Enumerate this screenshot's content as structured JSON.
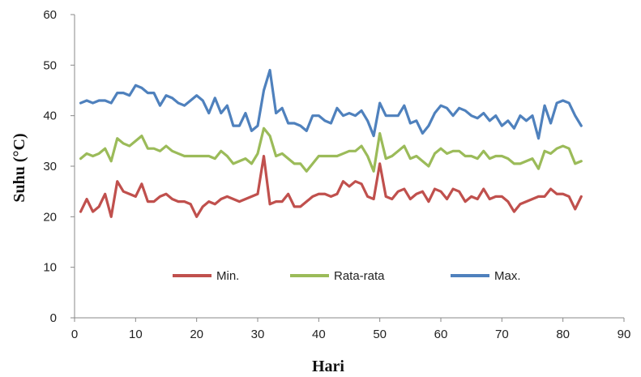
{
  "chart_data": {
    "type": "line",
    "xlabel": "Hari",
    "ylabel": "Suhu (°C)",
    "xlim": [
      0,
      90
    ],
    "ylim": [
      0,
      60
    ],
    "xticks": [
      0,
      10,
      20,
      30,
      40,
      50,
      60,
      70,
      80,
      90
    ],
    "yticks": [
      0,
      10,
      20,
      30,
      40,
      50,
      60
    ],
    "grid": false,
    "legend": "bottom-center",
    "x": [
      1,
      2,
      3,
      4,
      5,
      6,
      7,
      8,
      9,
      10,
      11,
      12,
      13,
      14,
      15,
      16,
      17,
      18,
      19,
      20,
      21,
      22,
      23,
      24,
      25,
      26,
      27,
      28,
      29,
      30,
      31,
      32,
      33,
      34,
      35,
      36,
      37,
      38,
      39,
      40,
      41,
      42,
      43,
      44,
      45,
      46,
      47,
      48,
      49,
      50,
      51,
      52,
      53,
      54,
      55,
      56,
      57,
      58,
      59,
      60,
      61,
      62,
      63,
      64,
      65,
      66,
      67,
      68,
      69,
      70,
      71,
      72,
      73,
      74,
      75,
      76,
      77,
      78,
      79,
      80,
      81,
      82,
      83
    ],
    "series": [
      {
        "name": "Min.",
        "color": "#c0504d",
        "values": [
          21,
          23.5,
          21,
          22,
          24.5,
          20,
          27,
          25,
          24.5,
          24,
          26.5,
          23,
          23,
          24,
          24.5,
          23.5,
          23,
          23,
          22.5,
          20,
          22,
          23,
          22.5,
          23.5,
          24,
          23.5,
          23,
          23.5,
          24,
          24.5,
          32,
          22.5,
          23,
          23,
          24.5,
          22,
          22,
          23,
          24,
          24.5,
          24.5,
          24,
          24.5,
          27,
          26,
          27,
          26.5,
          24,
          23.5,
          30.5,
          24,
          23.5,
          25,
          25.5,
          23.5,
          24.5,
          25,
          23,
          25.5,
          25,
          23.5,
          25.5,
          25,
          23,
          24,
          23.5,
          25.5,
          23.5,
          24,
          24,
          23,
          21,
          22.5,
          23,
          23.5,
          24,
          24,
          25.5,
          24.5,
          24.5,
          24,
          21.5,
          24
        ]
      },
      {
        "name": "Rata-rata",
        "color": "#9bbb59",
        "values": [
          31.5,
          32.5,
          32,
          32.5,
          33.5,
          31,
          35.5,
          34.5,
          34,
          35,
          36,
          33.5,
          33.5,
          33,
          34,
          33,
          32.5,
          32,
          32,
          32,
          32,
          32,
          31.5,
          33,
          32,
          30.5,
          31,
          31.5,
          30.5,
          32.5,
          37.5,
          36,
          32,
          32.5,
          31.5,
          30.5,
          30.5,
          29,
          30.5,
          32,
          32,
          32,
          32,
          32.5,
          33,
          33,
          34,
          32,
          29,
          36.5,
          31.5,
          32,
          33,
          34,
          31.5,
          32,
          31,
          30,
          32.5,
          33.5,
          32.5,
          33,
          33,
          32,
          32,
          31.5,
          33,
          31.5,
          32,
          32,
          31.5,
          30.5,
          30.5,
          31,
          31.5,
          29.5,
          33,
          32.5,
          33.5,
          34,
          33.5,
          30.5,
          31
        ]
      },
      {
        "name": "Max.",
        "color": "#4f81bd",
        "values": [
          42.5,
          43,
          42.5,
          43,
          43,
          42.5,
          44.5,
          44.5,
          44,
          46,
          45.5,
          44.5,
          44.5,
          42,
          44,
          43.5,
          42.5,
          42,
          43,
          44,
          43,
          40.5,
          43.5,
          40.5,
          42,
          38,
          38,
          40.5,
          37,
          38,
          45,
          49,
          40.5,
          41.5,
          38.5,
          38.5,
          38,
          37,
          40,
          40,
          39,
          38.5,
          41.5,
          40,
          40.5,
          40,
          41,
          39,
          36,
          42.5,
          40,
          40,
          40,
          42,
          38.5,
          39,
          36.5,
          38,
          40.5,
          42,
          41.5,
          40,
          41.5,
          41,
          40,
          39.5,
          40.5,
          39,
          40,
          38,
          39,
          37.5,
          40,
          39,
          40,
          35.5,
          42,
          38.5,
          42.5,
          43,
          42.5,
          40,
          38
        ]
      }
    ]
  }
}
